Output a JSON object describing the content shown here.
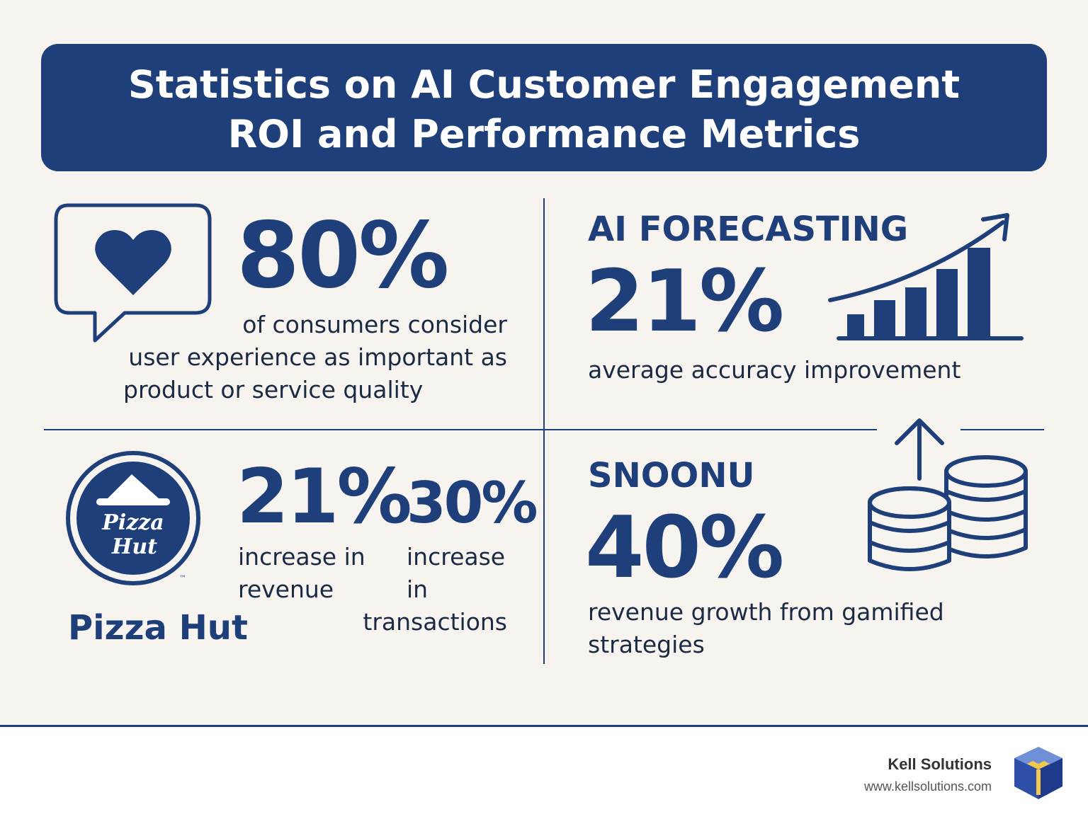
{
  "title": {
    "line1": "Statistics on AI Customer Engagement",
    "line2": "ROI and Performance Metrics"
  },
  "ux_stat": {
    "value": "80%",
    "desc_line1": "of consumers consider",
    "desc_line2": "user experience as important as",
    "desc_line3": "product or service quality",
    "icon": "heart-chat-icon"
  },
  "forecasting": {
    "heading": "AI FORECASTING",
    "value": "21%",
    "desc": "average accuracy improvement",
    "icon": "growth-bar-chart-icon"
  },
  "pizza_hut": {
    "logo_text_1": "Pizza",
    "logo_text_2": "Hut",
    "trademark": "™",
    "name": "Pizza Hut",
    "stat1_value": "21%",
    "stat1_desc_line1": "increase in",
    "stat1_desc_line2": "revenue",
    "stat2_value": "30%",
    "stat2_desc_line1": "increase",
    "stat2_desc_line2": "in",
    "stat2_desc_line3": "transactions"
  },
  "snoonu": {
    "heading": "SNOONU",
    "value": "40%",
    "desc_line1": "revenue growth from gamified",
    "desc_line2": "strategies",
    "icon": "coins-up-arrow-icon"
  },
  "footer": {
    "company": "Kell Solutions",
    "url": "www.kellsolutions.com",
    "logo_icon": "cube-logo-icon"
  },
  "colors": {
    "primary": "#1f3f7a",
    "background": "#f7f4ef",
    "text": "#1b2a44"
  }
}
